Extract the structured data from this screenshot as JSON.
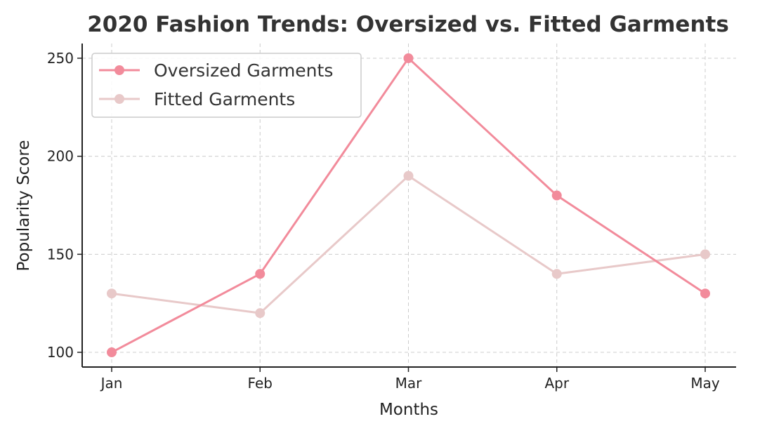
{
  "chart_data": {
    "type": "line",
    "title": "2020 Fashion Trends: Oversized vs. Fitted Garments",
    "xlabel": "Months",
    "ylabel": "Popularity Score",
    "categories": [
      "Jan",
      "Feb",
      "Mar",
      "Apr",
      "May"
    ],
    "yticks": [
      100,
      150,
      200,
      250
    ],
    "ylim": [
      92.5,
      257.5
    ],
    "grid": true,
    "legend_position": "top-left",
    "series": [
      {
        "name": "Oversized Garments",
        "values": [
          100,
          140,
          250,
          180,
          130
        ],
        "color": "#f28b9b"
      },
      {
        "name": "Fitted Garments",
        "values": [
          130,
          120,
          190,
          140,
          150
        ],
        "color": "#e8c9c9"
      }
    ]
  }
}
